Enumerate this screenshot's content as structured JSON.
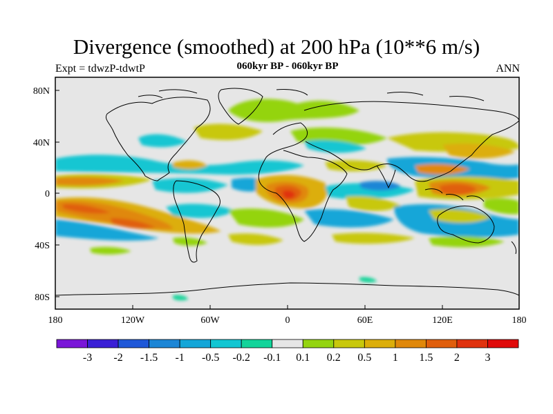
{
  "title": "Divergence (smoothed) at 200 hPa (10**6 m/s)",
  "subtitle_left": "Expt = tdwzP-tdwtP",
  "subtitle_center": "060kyr BP - 060kyr BP",
  "subtitle_right": "ANN",
  "lat_labels": [
    "80N",
    "40N",
    "0",
    "40S",
    "80S"
  ],
  "lon_labels": [
    "180",
    "120W",
    "60W",
    "0",
    "60E",
    "120E",
    "180"
  ],
  "colorbar": {
    "labels": [
      "-3",
      "-2",
      "-1.5",
      "-1",
      "-0.5",
      "-0.2",
      "-0.1",
      "0.1",
      "0.2",
      "0.5",
      "1",
      "1.5",
      "2",
      "3"
    ],
    "colors": [
      "#7a16d8",
      "#3a1fd6",
      "#1f58d8",
      "#1c86d6",
      "#14a6d8",
      "#12c6d2",
      "#12d49a",
      "#e6e6e6",
      "#94d410",
      "#c8c80c",
      "#dcae0a",
      "#e0880a",
      "#e05e0c",
      "#e0320e",
      "#e00a0a"
    ]
  },
  "colors": {
    "land_line": "#000000",
    "background": "#e6e6e6"
  }
}
